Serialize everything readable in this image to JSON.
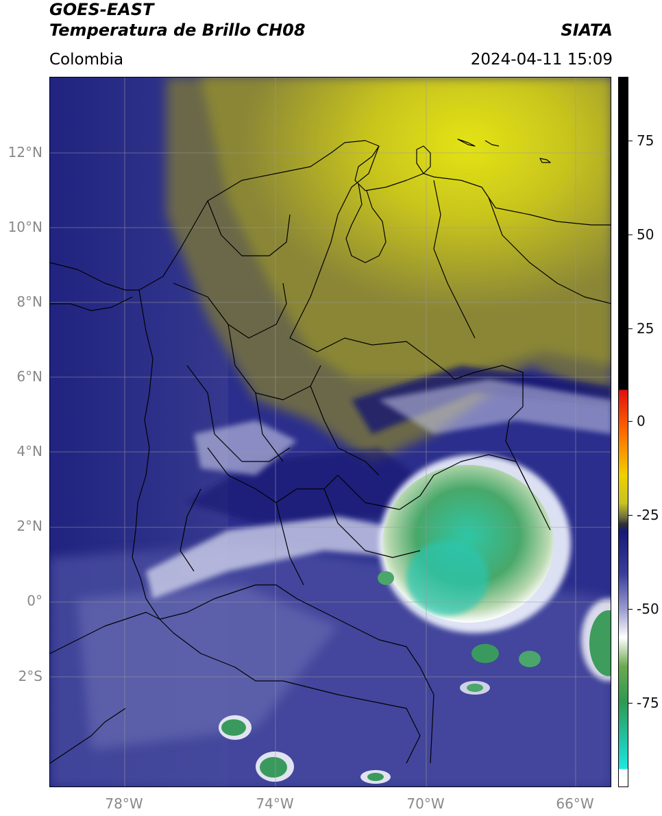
{
  "header": {
    "title_line1": "GOES-EAST",
    "title_line2": "Temperatura de Brillo CH08",
    "brand": "SIATA",
    "region": "Colombia",
    "timestamp": "2024-04-11 15:09"
  },
  "map": {
    "lat_ticks": [
      "12°N",
      "10°N",
      "8°N",
      "6°N",
      "4°N",
      "2°N",
      "0°",
      "2°S"
    ],
    "lon_ticks": [
      "78°W",
      "74°W",
      "70°W",
      "66°W"
    ]
  },
  "colorbar": {
    "ticks": [
      "75",
      "50",
      "25",
      "0",
      "-25",
      "-50",
      "-75"
    ]
  }
}
